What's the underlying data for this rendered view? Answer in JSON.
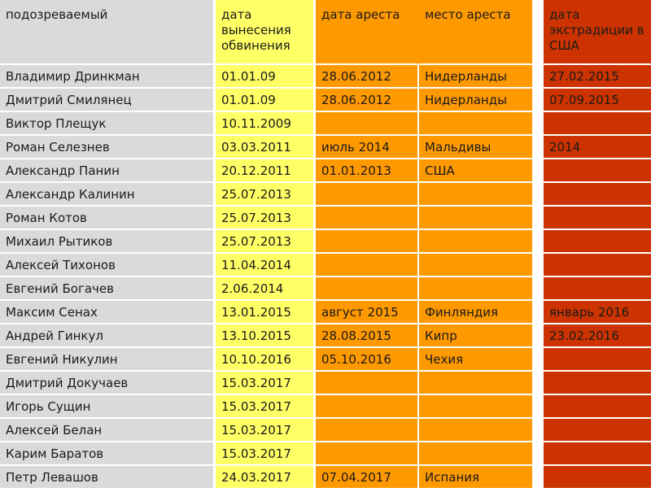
{
  "headers": {
    "suspect": "подозреваемый",
    "charge_date": "дата вынесения обвинения",
    "arrest_date": "дата ареста",
    "arrest_place": "место ареста",
    "extradition_date": "дата экстрадиции в США"
  },
  "rows": [
    {
      "suspect": "Владимир Дринкман",
      "charge_date": "01.01.09",
      "arrest_date": "28.06.2012",
      "arrest_place": "Нидерланды",
      "extradition_date": "27.02.2015"
    },
    {
      "suspect": "Дмитрий Смилянец",
      "charge_date": "01.01.09",
      "arrest_date": "28.06.2012",
      "arrest_place": "Нидерланды",
      "extradition_date": "07.09.2015"
    },
    {
      "suspect": "Виктор Плещук",
      "charge_date": "10.11.2009",
      "arrest_date": "",
      "arrest_place": "",
      "extradition_date": ""
    },
    {
      "suspect": "Роман Селезнев",
      "charge_date": "03.03.2011",
      "arrest_date": "июль 2014",
      "arrest_place": "Мальдивы",
      "extradition_date": "2014"
    },
    {
      "suspect": "Александр Панин",
      "charge_date": "20.12.2011",
      "arrest_date": "01.01.2013",
      "arrest_place": "США",
      "extradition_date": ""
    },
    {
      "suspect": "Александр Калинин",
      "charge_date": "25.07.2013",
      "arrest_date": "",
      "arrest_place": "",
      "extradition_date": ""
    },
    {
      "suspect": "Роман Котов",
      "charge_date": "25.07.2013",
      "arrest_date": "",
      "arrest_place": "",
      "extradition_date": ""
    },
    {
      "suspect": "Михаил Рытиков",
      "charge_date": "25.07.2013",
      "arrest_date": "",
      "arrest_place": "",
      "extradition_date": ""
    },
    {
      "suspect": "Алексей Тихонов",
      "charge_date": "11.04.2014",
      "arrest_date": "",
      "arrest_place": "",
      "extradition_date": ""
    },
    {
      "suspect": "Евгений Богачев",
      "charge_date": "2.06.2014",
      "arrest_date": "",
      "arrest_place": "",
      "extradition_date": ""
    },
    {
      "suspect": "Максим Сенах",
      "charge_date": "13.01.2015",
      "arrest_date": "август 2015",
      "arrest_place": "Финляндия",
      "extradition_date": "январь 2016"
    },
    {
      "suspect": "Андрей Гинкул",
      "charge_date": "13.10.2015",
      "arrest_date": "28.08.2015",
      "arrest_place": "Кипр",
      "extradition_date": "23.02.2016"
    },
    {
      "suspect": "Евгений Никулин",
      "charge_date": "10.10.2016",
      "arrest_date": "05.10.2016",
      "arrest_place": "Чехия",
      "extradition_date": ""
    },
    {
      "suspect": "Дмитрий Докучаев",
      "charge_date": "15.03.2017",
      "arrest_date": "",
      "arrest_place": "",
      "extradition_date": ""
    },
    {
      "suspect": "Игорь Сущин",
      "charge_date": "15.03.2017",
      "arrest_date": "",
      "arrest_place": "",
      "extradition_date": ""
    },
    {
      "suspect": "Алексей Белан",
      "charge_date": "15.03.2017",
      "arrest_date": "",
      "arrest_place": "",
      "extradition_date": ""
    },
    {
      "suspect": "Карим Баратов",
      "charge_date": "15.03.2017",
      "arrest_date": "",
      "arrest_place": "",
      "extradition_date": ""
    },
    {
      "suspect": "Петр Левашов",
      "charge_date": "24.03.2017",
      "arrest_date": "07.04.2017",
      "arrest_place": "Испания",
      "extradition_date": ""
    }
  ],
  "colors": {
    "suspect_col": "#dadada",
    "charge_col": "#ffff66",
    "arrest_col": "#ff9900",
    "extradition_col": "#cc3300"
  }
}
